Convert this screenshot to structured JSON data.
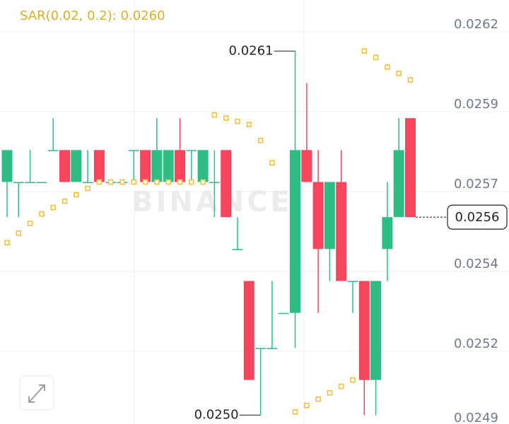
{
  "chart_data": {
    "type": "candlestick",
    "indicator_label": "SAR(0.02, 0.2): 0.0260",
    "watermark": "BINANCE",
    "high_label": "0.0261",
    "low_label": "0.0250",
    "last_price_label": "0.0256",
    "up_color": "#2ebd85",
    "down_color": "#f6465d",
    "sar_color": "#f0c040",
    "ylim": [
      0.024972,
      0.0263
    ],
    "yticks": [
      0.0262,
      {
        "value": 0.02595,
        "label": "0.0259"
      },
      0.0257,
      {
        "value": 0.02545,
        "label": "0.0254"
      },
      0.0252,
      {
        "value": 0.02495,
        "label": "0.0249"
      }
    ],
    "grid": true,
    "open": [
      0.02573,
      0.02573,
      0.02573,
      0.02573,
      0.02583,
      0.02583,
      0.02573,
      0.02573,
      0.02583,
      0.02573,
      0.02573,
      0.02583,
      0.02583,
      0.02573,
      0.02573,
      0.02583,
      0.02583,
      0.02573,
      0.02573,
      0.02583,
      0.02552,
      0.02542,
      0.02521,
      0.02521,
      0.02532,
      0.02532,
      0.02583,
      0.02573,
      0.02552,
      0.02573,
      0.02542,
      0.02542,
      0.02511,
      0.02552,
      0.02562,
      0.02593
    ],
    "high": [
      0.02583,
      0.02573,
      0.02583,
      0.02573,
      0.02593,
      0.02583,
      0.02583,
      0.02583,
      0.02583,
      0.02573,
      0.02573,
      0.02583,
      0.02583,
      0.02593,
      0.02583,
      0.02593,
      0.02583,
      0.02583,
      0.02583,
      0.02583,
      0.02562,
      0.02542,
      0.02521,
      0.02542,
      0.02532,
      0.02614,
      0.02604,
      0.02583,
      0.02573,
      0.02583,
      0.02542,
      0.02542,
      0.02542,
      0.02573,
      0.02593,
      0.02593
    ],
    "low": [
      0.02562,
      0.02562,
      0.02573,
      0.02573,
      0.02583,
      0.02573,
      0.02573,
      0.02573,
      0.02573,
      0.02573,
      0.02573,
      0.02573,
      0.02573,
      0.02573,
      0.02573,
      0.02573,
      0.02573,
      0.02573,
      0.02562,
      0.02562,
      0.02552,
      0.02511,
      0.025,
      0.02521,
      0.02532,
      0.02521,
      0.02573,
      0.02532,
      0.02542,
      0.02542,
      0.02532,
      0.025,
      0.025,
      0.02542,
      0.02562,
      0.02562
    ],
    "close": [
      0.02583,
      0.02573,
      0.02573,
      0.02573,
      0.02583,
      0.02573,
      0.02583,
      0.02573,
      0.02573,
      0.02573,
      0.02573,
      0.02583,
      0.02573,
      0.02583,
      0.02583,
      0.02573,
      0.02583,
      0.02583,
      0.02573,
      0.02562,
      0.02552,
      0.02511,
      0.02521,
      0.02521,
      0.02532,
      0.02583,
      0.02573,
      0.02552,
      0.02573,
      0.02542,
      0.02542,
      0.02511,
      0.02542,
      0.02562,
      0.02583,
      0.02562
    ],
    "sar": [
      0.02554,
      0.02557,
      0.0256,
      0.02563,
      0.02565,
      0.02567,
      0.02569,
      0.02571,
      0.02573,
      0.02573,
      0.02573,
      0.02573,
      0.02573,
      0.02573,
      0.02573,
      0.02573,
      0.02573,
      0.02573,
      0.02594,
      0.02593,
      0.02592,
      0.02591,
      0.02586,
      0.02579,
      null,
      0.02501,
      0.02503,
      0.02505,
      0.02507,
      0.02509,
      0.02511,
      0.02614,
      0.02612,
      0.02609,
      0.02607,
      0.02605
    ]
  }
}
